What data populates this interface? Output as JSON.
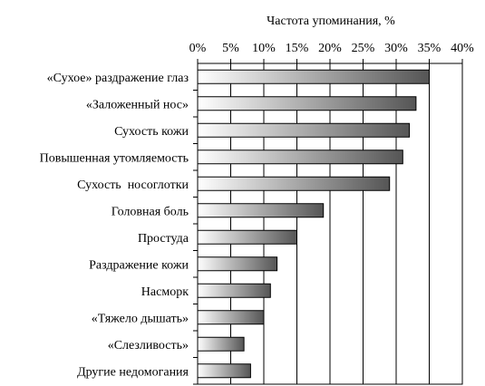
{
  "chart_data": {
    "type": "bar",
    "orientation": "horizontal",
    "xlabel": "Частота упоминания, %",
    "xlim": [
      0,
      40
    ],
    "xticks": [
      "0%",
      "5%",
      "10%",
      "15%",
      "20%",
      "25%",
      "30%",
      "35%",
      "40%"
    ],
    "x_axis_position": "top",
    "grid": true,
    "categories": [
      "«Сухое» раздражение глаз",
      "«Заложенный нос»",
      "Сухость кожи",
      "Повышенная утомляемость",
      "Сухость  носоглотки",
      "Головная боль",
      "Простуда",
      "Раздражение кожи",
      "Насморк",
      "«Тяжело дышать»",
      "«Слезливость»",
      "Другие недомогания"
    ],
    "values": [
      35,
      33,
      32,
      31,
      29,
      19,
      15,
      12,
      11,
      10,
      7,
      8
    ],
    "bar_gradient": [
      "#ffffff",
      "#555555"
    ]
  }
}
